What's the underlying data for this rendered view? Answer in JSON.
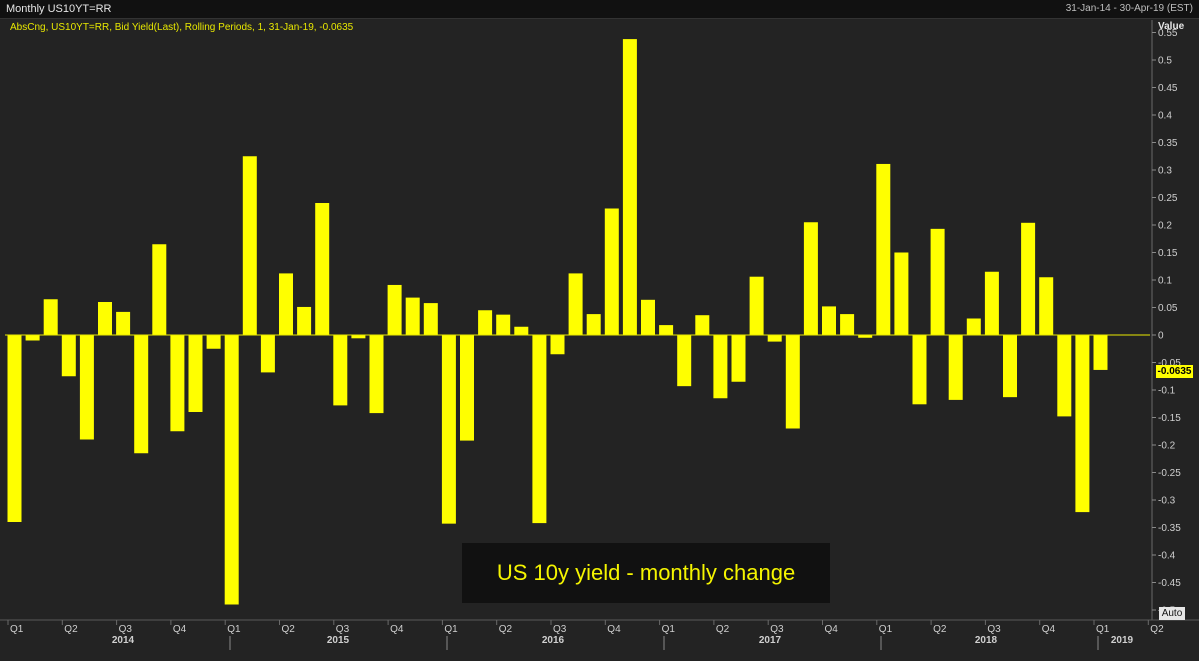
{
  "window": {
    "title": "Monthly US10YT=RR",
    "date_range": "31-Jan-14 - 30-Apr-19 (EST)"
  },
  "legend": "AbsCng, US10YT=RR, Bid Yield(Last), Rolling Periods, 1, 31-Jan-19, -0.0635",
  "value_header": "Value",
  "last_value_label": "-0.0635",
  "auto_button": "Auto",
  "annotation": "US 10y yield - monthly change",
  "colors": {
    "bar": "#ffff00",
    "background": "#232323",
    "zero_line": "#e8e800"
  },
  "chart_data": {
    "type": "bar",
    "title": "US 10y yield - monthly change",
    "ylabel": "Value",
    "ylim": [
      -0.5,
      0.56
    ],
    "grid": false,
    "y_ticks": [
      0.55,
      0.5,
      0.45,
      0.4,
      0.35,
      0.3,
      0.25,
      0.2,
      0.15,
      0.1,
      0.05,
      0,
      -0.05,
      -0.1,
      -0.15,
      -0.2,
      -0.25,
      -0.3,
      -0.35,
      -0.4,
      -0.45,
      -0.5
    ],
    "y_tick_labels": [
      "0.55",
      "0.5",
      "0.45",
      "0.4",
      "0.35",
      "0.3",
      "0.25",
      "0.2",
      "0.15",
      "0.1",
      "0.05",
      "0",
      "-0.05",
      "-0.1",
      "-0.15",
      "-0.2",
      "-0.25",
      "-0.3",
      "-0.35",
      "-0.4",
      "-0.45",
      "-0.5"
    ],
    "quarter_labels": [
      "Q1",
      "Q2",
      "Q3",
      "Q4",
      "Q1",
      "Q2",
      "Q3",
      "Q4",
      "Q1",
      "Q2",
      "Q3",
      "Q4",
      "Q1",
      "Q2",
      "Q3",
      "Q4",
      "Q1",
      "Q2",
      "Q3",
      "Q4",
      "Q1",
      "Q2"
    ],
    "year_labels": [
      "2014",
      "2015",
      "2016",
      "2017",
      "2018",
      "2019"
    ],
    "categories": [
      "Jan-14",
      "Feb-14",
      "Mar-14",
      "Apr-14",
      "May-14",
      "Jun-14",
      "Jul-14",
      "Aug-14",
      "Sep-14",
      "Oct-14",
      "Nov-14",
      "Dec-14",
      "Jan-15",
      "Feb-15",
      "Mar-15",
      "Apr-15",
      "May-15",
      "Jun-15",
      "Jul-15",
      "Aug-15",
      "Sep-15",
      "Oct-15",
      "Nov-15",
      "Dec-15",
      "Jan-16",
      "Feb-16",
      "Mar-16",
      "Apr-16",
      "May-16",
      "Jun-16",
      "Jul-16",
      "Aug-16",
      "Sep-16",
      "Oct-16",
      "Nov-16",
      "Dec-16",
      "Jan-17",
      "Feb-17",
      "Mar-17",
      "Apr-17",
      "May-17",
      "Jun-17",
      "Jul-17",
      "Aug-17",
      "Sep-17",
      "Oct-17",
      "Nov-17",
      "Dec-17",
      "Jan-18",
      "Feb-18",
      "Mar-18",
      "Apr-18",
      "May-18",
      "Jun-18",
      "Jul-18",
      "Aug-18",
      "Sep-18",
      "Oct-18",
      "Nov-18",
      "Dec-18",
      "Jan-19"
    ],
    "values": [
      -0.34,
      -0.01,
      0.065,
      -0.075,
      -0.19,
      0.06,
      0.042,
      -0.215,
      0.165,
      -0.175,
      -0.14,
      -0.025,
      -0.49,
      0.325,
      -0.068,
      0.112,
      0.051,
      0.24,
      -0.128,
      -0.006,
      -0.142,
      0.091,
      0.068,
      0.058,
      -0.343,
      -0.192,
      0.045,
      0.037,
      0.015,
      -0.342,
      -0.035,
      0.112,
      0.038,
      0.23,
      0.538,
      0.064,
      0.018,
      -0.093,
      0.036,
      -0.115,
      -0.085,
      0.106,
      -0.012,
      -0.17,
      0.205,
      0.052,
      0.038,
      -0.005,
      0.311,
      0.15,
      -0.126,
      0.193,
      -0.118,
      0.03,
      0.115,
      -0.113,
      0.204,
      0.105,
      -0.148,
      -0.322,
      -0.0635
    ]
  }
}
